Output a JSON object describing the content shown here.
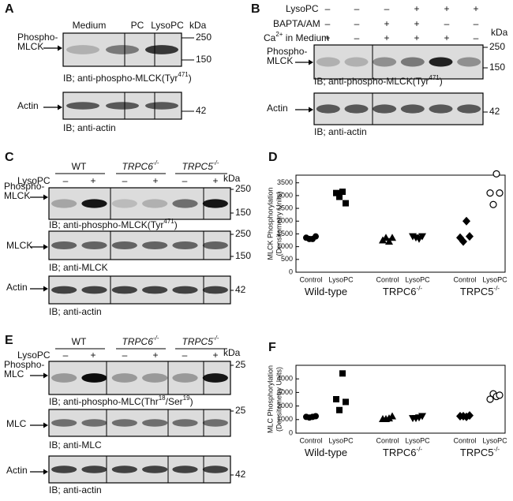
{
  "panels": {
    "A": {
      "letter": "A",
      "lanes": [
        "Medium",
        "PC",
        "LysoPC"
      ],
      "kda": "kDa",
      "blots": [
        {
          "label": [
            "Phospho-",
            "MLCK"
          ],
          "markers": [
            250,
            150
          ],
          "caption": [
            {
              "text": "IB; anti-phospho-MLCK(Tyr"
            },
            {
              "sup": "471"
            },
            {
              "text": ")"
            }
          ]
        },
        {
          "label": [
            "Actin"
          ],
          "markers": [
            42
          ],
          "caption": [
            {
              "text": "IB; anti-actin"
            }
          ]
        }
      ]
    },
    "B": {
      "letter": "B",
      "kda": "kDa",
      "conditions": [
        {
          "label": [
            {
              "text": "LysoPC"
            }
          ],
          "signs": [
            "–",
            "–",
            "–",
            "+",
            "+",
            "+"
          ]
        },
        {
          "label": [
            {
              "text": "BAPTA/AM"
            }
          ],
          "signs": [
            "–",
            "–",
            "+",
            "+",
            "–",
            "–"
          ]
        },
        {
          "label": [
            {
              "text": "Ca"
            },
            {
              "sup": "2+"
            },
            {
              "text": " in Medium"
            }
          ],
          "signs": [
            "+",
            "–",
            "+",
            "+",
            "+",
            "–"
          ]
        }
      ],
      "blots": [
        {
          "label": [
            "Phospho-",
            "MLCK"
          ],
          "markers": [
            250,
            150
          ],
          "caption": [
            {
              "text": "IB; anti-phospho-MLCK(Tyr"
            },
            {
              "sup": "471"
            },
            {
              "text": ")"
            }
          ]
        },
        {
          "label": [
            "Actin"
          ],
          "markers": [
            42
          ],
          "caption": [
            {
              "text": "IB; anti-actin"
            }
          ]
        }
      ]
    },
    "C": {
      "letter": "C",
      "kda": "kDa",
      "treatment": "LysoPC",
      "groups": [
        [
          {
            "text": "WT"
          }
        ],
        [
          {
            "text": "TRPC6"
          },
          {
            "sup": "-/-"
          }
        ],
        [
          {
            "text": "TRPC5"
          },
          {
            "sup": "-/-"
          }
        ]
      ],
      "signs": [
        "–",
        "+",
        "–",
        "+",
        "–",
        "+"
      ],
      "blots": [
        {
          "label": [
            "Phospho-",
            "MLCK"
          ],
          "markers": [
            250,
            150
          ],
          "caption": [
            {
              "text": "IB; anti-phospho-MLCK(Tyr"
            },
            {
              "sup": "471"
            },
            {
              "text": ")"
            }
          ]
        },
        {
          "label": [
            "MLCK"
          ],
          "markers": [
            250,
            150
          ],
          "caption": [
            {
              "text": "IB; anti-MLCK"
            }
          ]
        },
        {
          "label": [
            "Actin"
          ],
          "markers": [
            42
          ],
          "caption": [
            {
              "text": "IB; anti-actin"
            }
          ]
        }
      ]
    },
    "E": {
      "letter": "E",
      "kda": "kDa",
      "treatment": "LysoPC",
      "groups": [
        [
          {
            "text": "WT"
          }
        ],
        [
          {
            "text": "TRPC6"
          },
          {
            "sup": "-/-"
          }
        ],
        [
          {
            "text": "TRPC5"
          },
          {
            "sup": "-/-"
          }
        ]
      ],
      "signs": [
        "–",
        "+",
        "–",
        "+",
        "–",
        "+"
      ],
      "blots": [
        {
          "label": [
            "Phospho-",
            "MLC"
          ],
          "markers": [
            25
          ],
          "caption": [
            {
              "text": "IB; anti-phospho-MLC(Thr"
            },
            {
              "sup": "18"
            },
            {
              "text": "/Ser"
            },
            {
              "sup": "19"
            },
            {
              "text": ")"
            }
          ]
        },
        {
          "label": [
            "MLC"
          ],
          "markers": [
            25
          ],
          "caption": [
            {
              "text": "IB; anti-MLC"
            }
          ]
        },
        {
          "label": [
            "Actin"
          ],
          "markers": [
            42
          ],
          "caption": [
            {
              "text": "IB; anti-actin"
            }
          ]
        }
      ]
    }
  },
  "chart_data": [
    {
      "type": "scatter",
      "letter": "D",
      "ylabel": [
        "MLCK Phosphorylation",
        "(Densitometry Units)"
      ],
      "categories": [
        "Control",
        "LysoPC",
        "Control",
        "LysoPC",
        "Control",
        "LysoPC"
      ],
      "groups": [
        [
          {
            "text": "Wild-type"
          }
        ],
        [
          {
            "text": "TRPC6"
          },
          {
            "sup": "-/-"
          }
        ],
        [
          {
            "text": "TRPC5"
          },
          {
            "sup": "-/-"
          }
        ]
      ],
      "ylim": [
        0,
        3800
      ],
      "yticks": [
        0,
        500,
        1000,
        1500,
        2000,
        2500,
        3000,
        3500
      ],
      "series": [
        {
          "marker": "circle",
          "color": "#000000",
          "values": [
            1350,
            1300,
            1300,
            1400
          ]
        },
        {
          "marker": "square",
          "color": "#000000",
          "values": [
            3100,
            2950,
            3150,
            2700
          ]
        },
        {
          "marker": "triangle",
          "color": "#000000",
          "values": [
            1250,
            1350,
            1200,
            1350
          ]
        },
        {
          "marker": "triangle-down",
          "color": "#000000",
          "values": [
            1400,
            1350,
            1300,
            1400
          ]
        },
        {
          "marker": "diamond",
          "color": "#000000",
          "values": [
            1350,
            1200,
            2000,
            1400
          ]
        },
        {
          "marker": "open-circle",
          "color": "#000000",
          "values": [
            3100,
            2650,
            3850,
            3100
          ]
        }
      ]
    },
    {
      "type": "scatter",
      "letter": "F",
      "ylabel": [
        "MLC Phosphorylation",
        "(Densitometry Units)"
      ],
      "categories": [
        "Control",
        "LysoPC",
        "Control",
        "LysoPC",
        "Control",
        "LysoPC"
      ],
      "groups": [
        [
          {
            "text": "Wild-type"
          }
        ],
        [
          {
            "text": "TRPC6"
          },
          {
            "sup": "-/-"
          }
        ],
        [
          {
            "text": "TRPC5"
          },
          {
            "sup": "-/-"
          }
        ]
      ],
      "ylim": [
        0,
        5000
      ],
      "yticks": [
        0,
        1000,
        2000,
        3000,
        4000
      ],
      "series": [
        {
          "marker": "circle",
          "color": "#000000",
          "values": [
            1200,
            1150,
            1200,
            1250
          ]
        },
        {
          "marker": "square",
          "color": "#000000",
          "values": [
            2500,
            1700,
            4400,
            2300
          ]
        },
        {
          "marker": "triangle",
          "color": "#000000",
          "values": [
            1050,
            1050,
            1100,
            1250
          ]
        },
        {
          "marker": "triangle-down",
          "color": "#000000",
          "values": [
            1100,
            1100,
            1150,
            1250
          ]
        },
        {
          "marker": "diamond",
          "color": "#000000",
          "values": [
            1250,
            1250,
            1200,
            1300
          ]
        },
        {
          "marker": "open-circle",
          "color": "#000000",
          "values": [
            2500,
            2900,
            2700,
            2800
          ]
        }
      ]
    }
  ]
}
